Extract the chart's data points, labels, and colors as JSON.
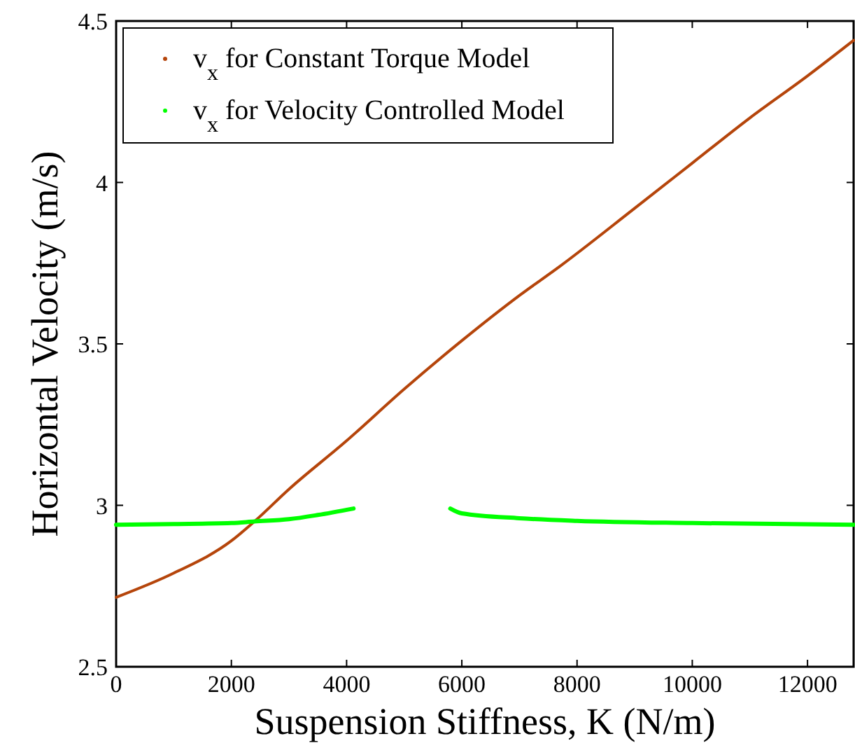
{
  "chart_data": {
    "type": "line",
    "xlabel": "Suspension Stiffness, K (N/m)",
    "ylabel": "Horizontal Velocity (m/s)",
    "xlim": [
      0,
      12800
    ],
    "ylim": [
      2.5,
      4.5
    ],
    "xticks": [
      0,
      2000,
      4000,
      6000,
      8000,
      10000,
      12000
    ],
    "yticks": [
      2.5,
      3,
      3.5,
      4,
      4.5
    ],
    "grid": false,
    "legend": "top left",
    "series": [
      {
        "name": "v$_{x}$ for Constant Torque Model",
        "color": "#b5450b",
        "x": [
          0,
          1000,
          2000,
          2400,
          3000,
          4000,
          5000,
          6000,
          7000,
          7700,
          9000,
          10000,
          11000,
          12000,
          12800
        ],
        "values": [
          2.715,
          2.79,
          2.89,
          2.95,
          3.05,
          3.2,
          3.36,
          3.51,
          3.65,
          3.74,
          3.92,
          4.06,
          4.2,
          4.33,
          4.44
        ]
      },
      {
        "name": "v$_{x}$ for Velocity Controlled Model",
        "color": "#00ff00",
        "x": [
          0,
          1000,
          2000,
          2400,
          3000,
          3500,
          4120,
          5770,
          5800,
          6000,
          7000,
          8000,
          10000,
          12800
        ],
        "values": [
          2.94,
          2.942,
          2.945,
          2.95,
          2.957,
          2.97,
          2.99,
          null,
          2.99,
          2.975,
          2.96,
          2.952,
          2.945,
          2.94
        ]
      }
    ]
  }
}
